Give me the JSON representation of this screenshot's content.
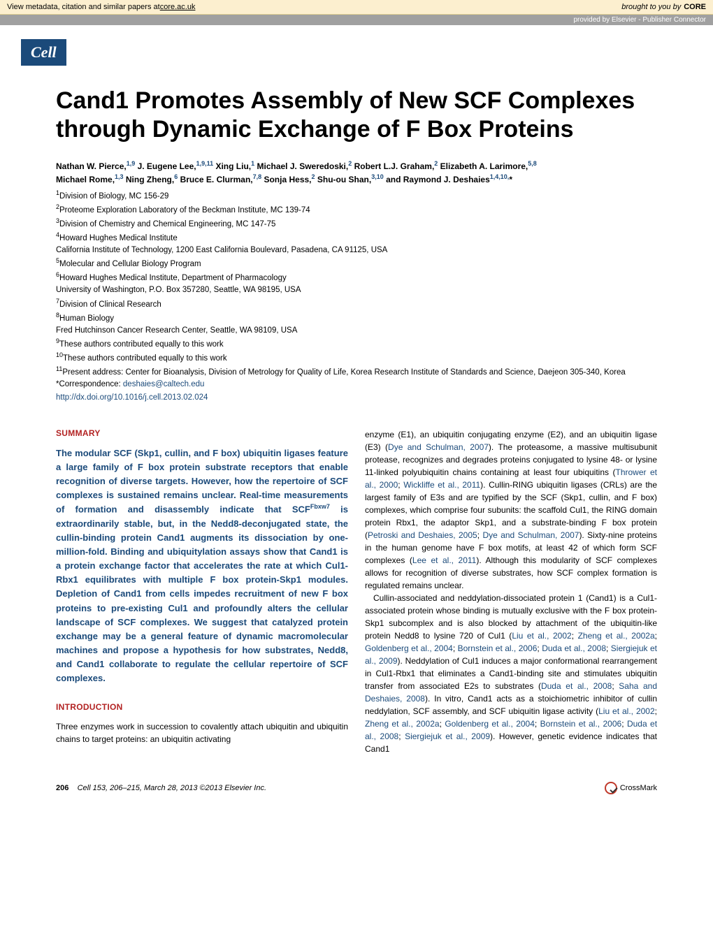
{
  "banner": {
    "metadata_text": "View metadata, citation and similar papers at ",
    "core_url": "core.ac.uk",
    "brought_by": "brought to you by",
    "core_label": "CORE",
    "provided_by": "provided by Elsevier - Publisher Connector"
  },
  "journal_logo": "Cell",
  "title": "Cand1 Promotes Assembly of New SCF Complexes through Dynamic Exchange of F Box Proteins",
  "authors_line1": "Nathan W. Pierce,",
  "authors_sup1": "1,9",
  "authors_line2": " J. Eugene Lee,",
  "authors_sup2": "1,9,11",
  "authors_line3": " Xing Liu,",
  "authors_sup3": "1",
  "authors_line4": " Michael J. Sweredoski,",
  "authors_sup4": "2",
  "authors_line5": " Robert L.J. Graham,",
  "authors_sup5": "2",
  "authors_line6": " Elizabeth A. Larimore,",
  "authors_sup6": "5,8",
  "authors_line7": "Michael Rome,",
  "authors_sup7": "1,3",
  "authors_line8": " Ning Zheng,",
  "authors_sup8": "6",
  "authors_line9": " Bruce E. Clurman,",
  "authors_sup9": "7,8",
  "authors_line10": " Sonja Hess,",
  "authors_sup10": "2",
  "authors_line11": " Shu-ou Shan,",
  "authors_sup11": "3,10",
  "authors_line12": " and Raymond J. Deshaies",
  "authors_sup12": "1,4,10,",
  "authors_star": "*",
  "aff": {
    "a1": "Division of Biology, MC 156-29",
    "a2": "Proteome Exploration Laboratory of the Beckman Institute, MC 139-74",
    "a3": "Division of Chemistry and Chemical Engineering, MC 147-75",
    "a4": "Howard Hughes Medical Institute",
    "caltech": "California Institute of Technology, 1200 East California Boulevard, Pasadena, CA 91125, USA",
    "a5": "Molecular and Cellular Biology Program",
    "a6": "Howard Hughes Medical Institute, Department of Pharmacology",
    "uw": "University of Washington, P.O. Box 357280, Seattle, WA 98195, USA",
    "a7": "Division of Clinical Research",
    "a8": "Human Biology",
    "fhcrc": "Fred Hutchinson Cancer Research Center, Seattle, WA 98109, USA",
    "a9": "These authors contributed equally to this work",
    "a10": "These authors contributed equally to this work",
    "a11": "Present address: Center for Bioanalysis, Division of Metrology for Quality of Life, Korea Research Institute of Standards and Science, Daejeon 305-340, Korea",
    "corr_label": "*Correspondence: ",
    "email": "deshaies@caltech.edu",
    "doi": "http://dx.doi.org/10.1016/j.cell.2013.02.024"
  },
  "summary_heading": "SUMMARY",
  "summary_text_1": "The modular SCF (Skp1, cullin, and F box) ubiquitin ligases feature a large family of F box protein substrate receptors that enable recognition of diverse targets. However, how the repertoire of SCF complexes is sustained remains unclear. Real-time measurements of formation and disassembly indicate that SCF",
  "summary_sup": "Fbxw7",
  "summary_text_2": " is extraordinarily stable, but, in the Nedd8-deconjugated state, the cullin-binding protein Cand1 augments its dissociation by one-million-fold. Binding and ubiquitylation assays show that Cand1 is a protein exchange factor that accelerates the rate at which Cul1-Rbx1 equilibrates with multiple F box protein-Skp1 modules. Depletion of Cand1 from cells impedes recruitment of new F box proteins to pre-existing Cul1 and profoundly alters the cellular landscape of SCF complexes. We suggest that catalyzed protein exchange may be a general feature of dynamic macromolecular machines and propose a hypothesis for how substrates, Nedd8, and Cand1 collaborate to regulate the cellular repertoire of SCF complexes.",
  "intro_heading": "INTRODUCTION",
  "intro_left": "Three enzymes work in succession to covalently attach ubiquitin and ubiquitin chains to target proteins: an ubiquitin activating",
  "body_r1": "enzyme (E1), an ubiquitin conjugating enzyme (E2), and an ubiquitin ligase (E3) (",
  "ref1": "Dye and Schulman, 2007",
  "body_r2": "). The proteasome, a massive multisubunit protease, recognizes and degrades proteins conjugated to lysine 48- or lysine 11-linked polyubiquitin chains containing at least four ubiquitins (",
  "ref2": "Thrower et al., 2000",
  "body_r3": "; ",
  "ref3": "Wickliffe et al., 2011",
  "body_r4": "). Cullin-RING ubiquitin ligases (CRLs) are the largest family of E3s and are typified by the SCF (Skp1, cullin, and F box) complexes, which comprise four subunits: the scaffold Cul1, the RING domain protein Rbx1, the adaptor Skp1, and a substrate-binding F box protein (",
  "ref4": "Petroski and Deshaies, 2005",
  "body_r5": "; ",
  "ref5": "Dye and Schulman, 2007",
  "body_r6": "). Sixty-nine proteins in the human genome have F box motifs, at least 42 of which form SCF complexes (",
  "ref6": "Lee et al., 2011",
  "body_r7": "). Although this modularity of SCF complexes allows for recognition of diverse substrates, how SCF complex formation is regulated remains unclear.",
  "body_p2_1": "Cullin-associated and neddylation-dissociated protein 1 (Cand1) is a Cul1-associated protein whose binding is mutually exclusive with the F box protein-Skp1 subcomplex and is also blocked by attachment of the ubiquitin-like protein Nedd8 to lysine 720 of Cul1 (",
  "ref7": "Liu et al., 2002",
  "body_p2_2": "; ",
  "ref8": "Zheng et al., 2002a",
  "body_p2_3": "; ",
  "ref9": "Goldenberg et al., 2004",
  "body_p2_4": "; ",
  "ref10": "Bornstein et al., 2006",
  "body_p2_5": "; ",
  "ref11": "Duda et al., 2008",
  "body_p2_6": "; ",
  "ref12": "Siergiejuk et al., 2009",
  "body_p2_7": "). Neddylation of Cul1 induces a major conformational rearrangement in Cul1-Rbx1 that eliminates a Cand1-binding site and stimulates ubiquitin transfer from associated E2s to substrates (",
  "ref13": "Duda et al., 2008",
  "body_p2_8": "; ",
  "ref14": "Saha and Deshaies, 2008",
  "body_p2_9": "). In vitro, Cand1 acts as a stoichiometric inhibitor of cullin neddylation, SCF assembly, and SCF ubiquitin ligase activity (",
  "ref15": "Liu et al., 2002",
  "body_p2_10": "; ",
  "ref16": "Zheng et al., 2002a",
  "body_p2_11": "; ",
  "ref17": "Goldenberg et al., 2004",
  "body_p2_12": "; ",
  "ref18": "Bornstein et al., 2006",
  "body_p2_13": "; ",
  "ref19": "Duda et al., 2008",
  "body_p2_14": "; ",
  "ref20": "Siergiejuk et al., 2009",
  "body_p2_15": "). However, genetic evidence indicates that Cand1",
  "footer": {
    "page_num": "206",
    "citation": "Cell 153, 206–215, March 28, 2013 ©2013 Elsevier Inc.",
    "crossmark": "CrossMark"
  }
}
